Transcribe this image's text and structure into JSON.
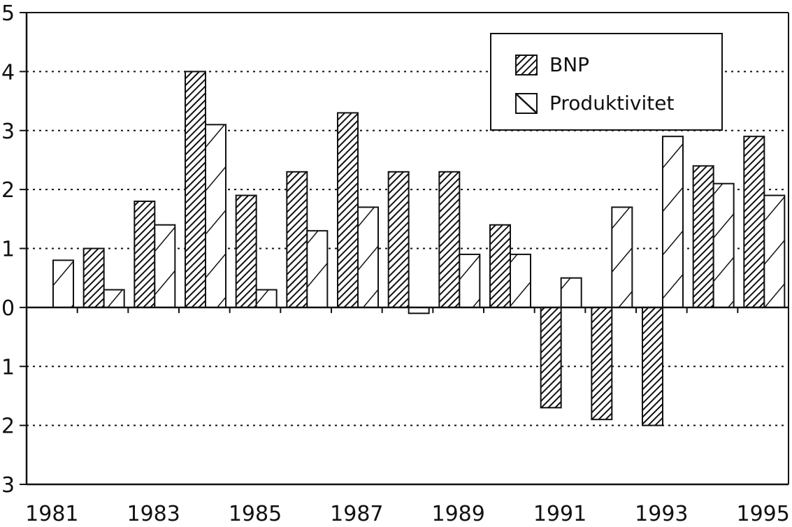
{
  "chart_data": {
    "type": "bar",
    "title": "",
    "xlabel": "",
    "ylabel": "",
    "categories": [
      "1981",
      "1982",
      "1983",
      "1984",
      "1985",
      "1986",
      "1987",
      "1988",
      "1989",
      "1990",
      "1991",
      "1992",
      "1993",
      "1994",
      "1995"
    ],
    "x_tick_labels": [
      "1981",
      "1983",
      "1985",
      "1987",
      "1989",
      "1991",
      "1993",
      "1995"
    ],
    "ylim": [
      -3,
      5
    ],
    "y_ticks": [
      5,
      4,
      3,
      2,
      1,
      0,
      -1,
      -2,
      -3
    ],
    "y_tick_labels": [
      "5",
      "4",
      "3",
      "2",
      "1",
      "0",
      "1",
      "2",
      "3"
    ],
    "grid": "horizontal dotted",
    "legend_position": "top-right",
    "series": [
      {
        "name": "BNP",
        "pattern": "dense-diagonal-hatch",
        "values": [
          0,
          1.0,
          1.8,
          4.0,
          1.9,
          2.3,
          3.3,
          2.3,
          2.3,
          1.4,
          -1.7,
          -1.9,
          -2.0,
          2.4,
          2.9
        ]
      },
      {
        "name": "Produktivitet",
        "pattern": "sparse-diagonal-hatch",
        "values": [
          0.8,
          0.3,
          1.4,
          3.1,
          0.3,
          1.3,
          1.7,
          -0.1,
          0.9,
          0.9,
          0.5,
          1.7,
          2.9,
          2.1,
          1.9
        ]
      }
    ],
    "colors": {
      "ink": "#111111",
      "background": "#ffffff"
    }
  }
}
